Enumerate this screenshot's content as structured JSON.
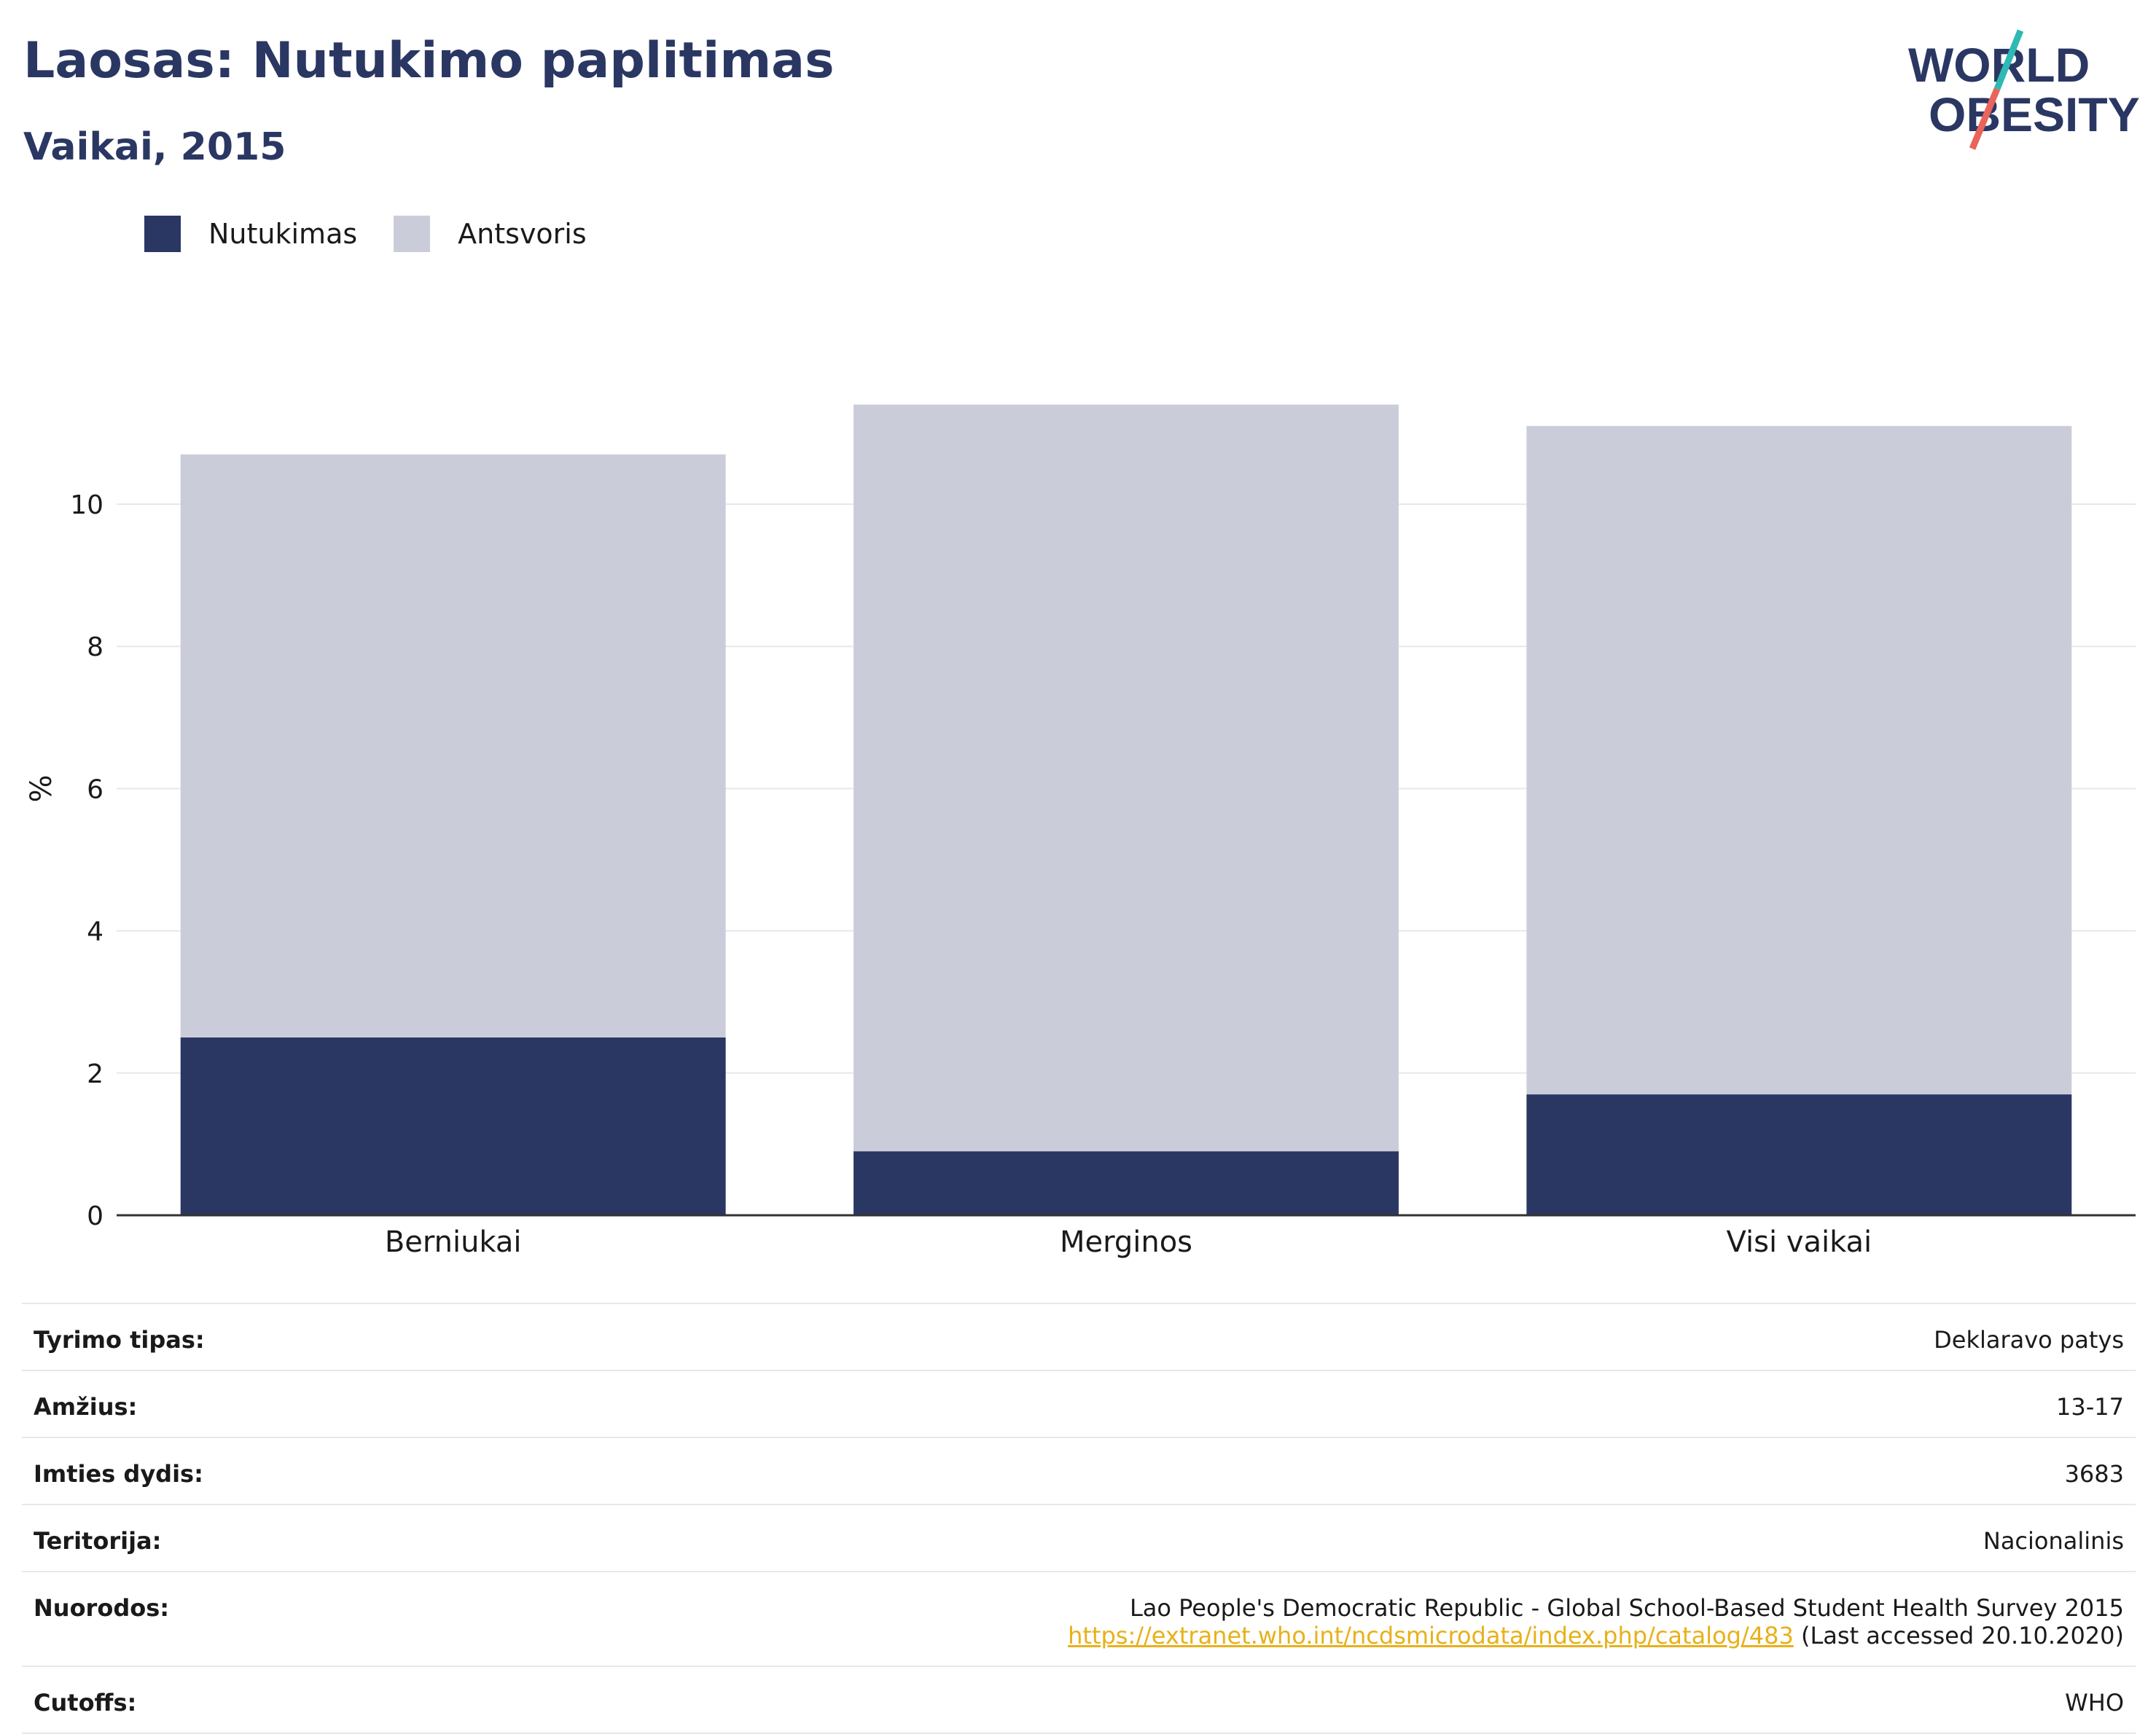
{
  "header": {
    "title": "Laosas: Nutukimo paplitimas",
    "subtitle": "Vaikai, 2015"
  },
  "logo": {
    "line1": "WORLD",
    "line2": "OBESITY"
  },
  "colors": {
    "obesity": "#2a3763",
    "overweight": "#cacdd9",
    "logo_teal": "#2fb9b4",
    "logo_red": "#e9645a",
    "link": "#e7b11a"
  },
  "chart_data": {
    "type": "bar",
    "stacked": true,
    "categories": [
      "Berniukai",
      "Merginos",
      "Visi vaikai"
    ],
    "series": [
      {
        "name": "Nutukimas",
        "values": [
          2.5,
          0.9,
          1.7
        ]
      },
      {
        "name": "Antsvoris",
        "values": [
          8.2,
          10.5,
          9.4
        ]
      }
    ],
    "ylabel": "%",
    "ylim": [
      0,
      12
    ],
    "yticks": [
      0,
      2,
      4,
      6,
      8,
      10
    ],
    "grid": true,
    "legend_position": "top-left"
  },
  "info": {
    "rows": [
      {
        "label": "Tyrimo tipas:",
        "value": "Deklaravo patys"
      },
      {
        "label": "Amžius:",
        "value": "13-17"
      },
      {
        "label": "Imties dydis:",
        "value": "3683"
      },
      {
        "label": "Teritorija:",
        "value": "Nacionalinis"
      }
    ],
    "references": {
      "label": "Nuorodos:",
      "line1": "Lao People's Democratic Republic - Global School-Based Student Health Survey 2015",
      "link": "https://extranet.who.int/ncdsmicrodata/index.php/catalog/483",
      "accessed": "(Last accessed 20.10.2020)"
    },
    "cutoffs": {
      "label": "Cutoffs:",
      "value": "WHO"
    }
  }
}
